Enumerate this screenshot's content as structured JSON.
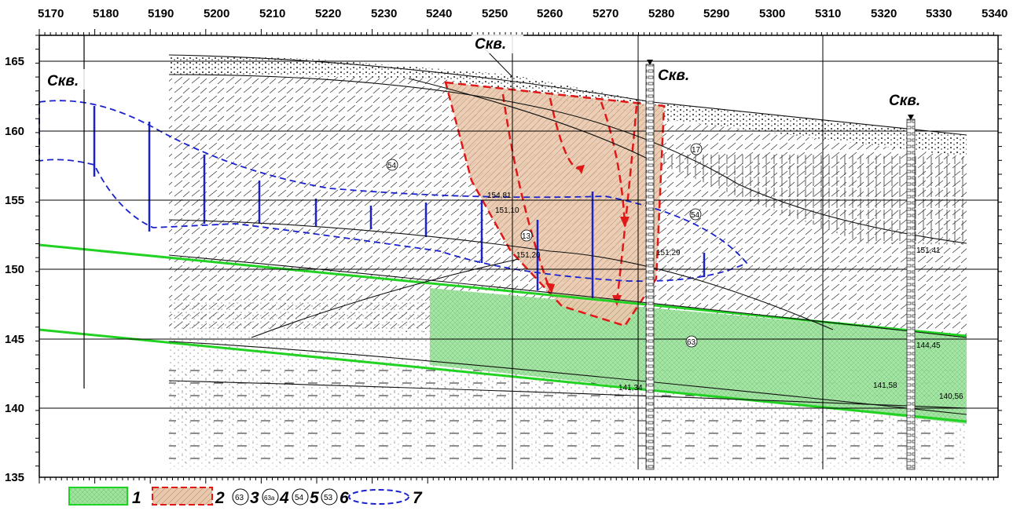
{
  "axes": {
    "x_ticks": [
      "5170",
      "5180",
      "5190",
      "5200",
      "5210",
      "5220",
      "5230",
      "5240",
      "5250",
      "5260",
      "5270",
      "5280",
      "5290",
      "5300",
      "5310",
      "5320",
      "5330",
      "5340"
    ],
    "y_ticks": [
      "165",
      "160",
      "155",
      "150",
      "145",
      "140",
      "135"
    ]
  },
  "wells": [
    {
      "label": "Скв."
    },
    {
      "label": "Скв."
    },
    {
      "label": "Скв."
    },
    {
      "label": "Скв."
    }
  ],
  "layer_codes": [
    "54",
    "17",
    "54",
    "13",
    "63"
  ],
  "elevation_labels": [
    "154,81",
    "151,10",
    "151,20",
    "151,29",
    "151,41",
    "144,45",
    "141,34",
    "141,58",
    "140,56"
  ],
  "legend": [
    {
      "number": "1",
      "color": "#9fe39f"
    },
    {
      "number": "2",
      "color": "#e9c9ad"
    },
    {
      "code": "63",
      "number": "3"
    },
    {
      "code": "63a",
      "number": "4"
    },
    {
      "code": "54",
      "number": "5"
    },
    {
      "code": "53",
      "number": "6"
    },
    {
      "number": "7"
    }
  ],
  "colors": {
    "green_zone": "#9fe39f",
    "green_line": "#22d222",
    "red_zone": "#e9c9ad",
    "red_line": "#e01818",
    "blue": "#1a22cc"
  }
}
